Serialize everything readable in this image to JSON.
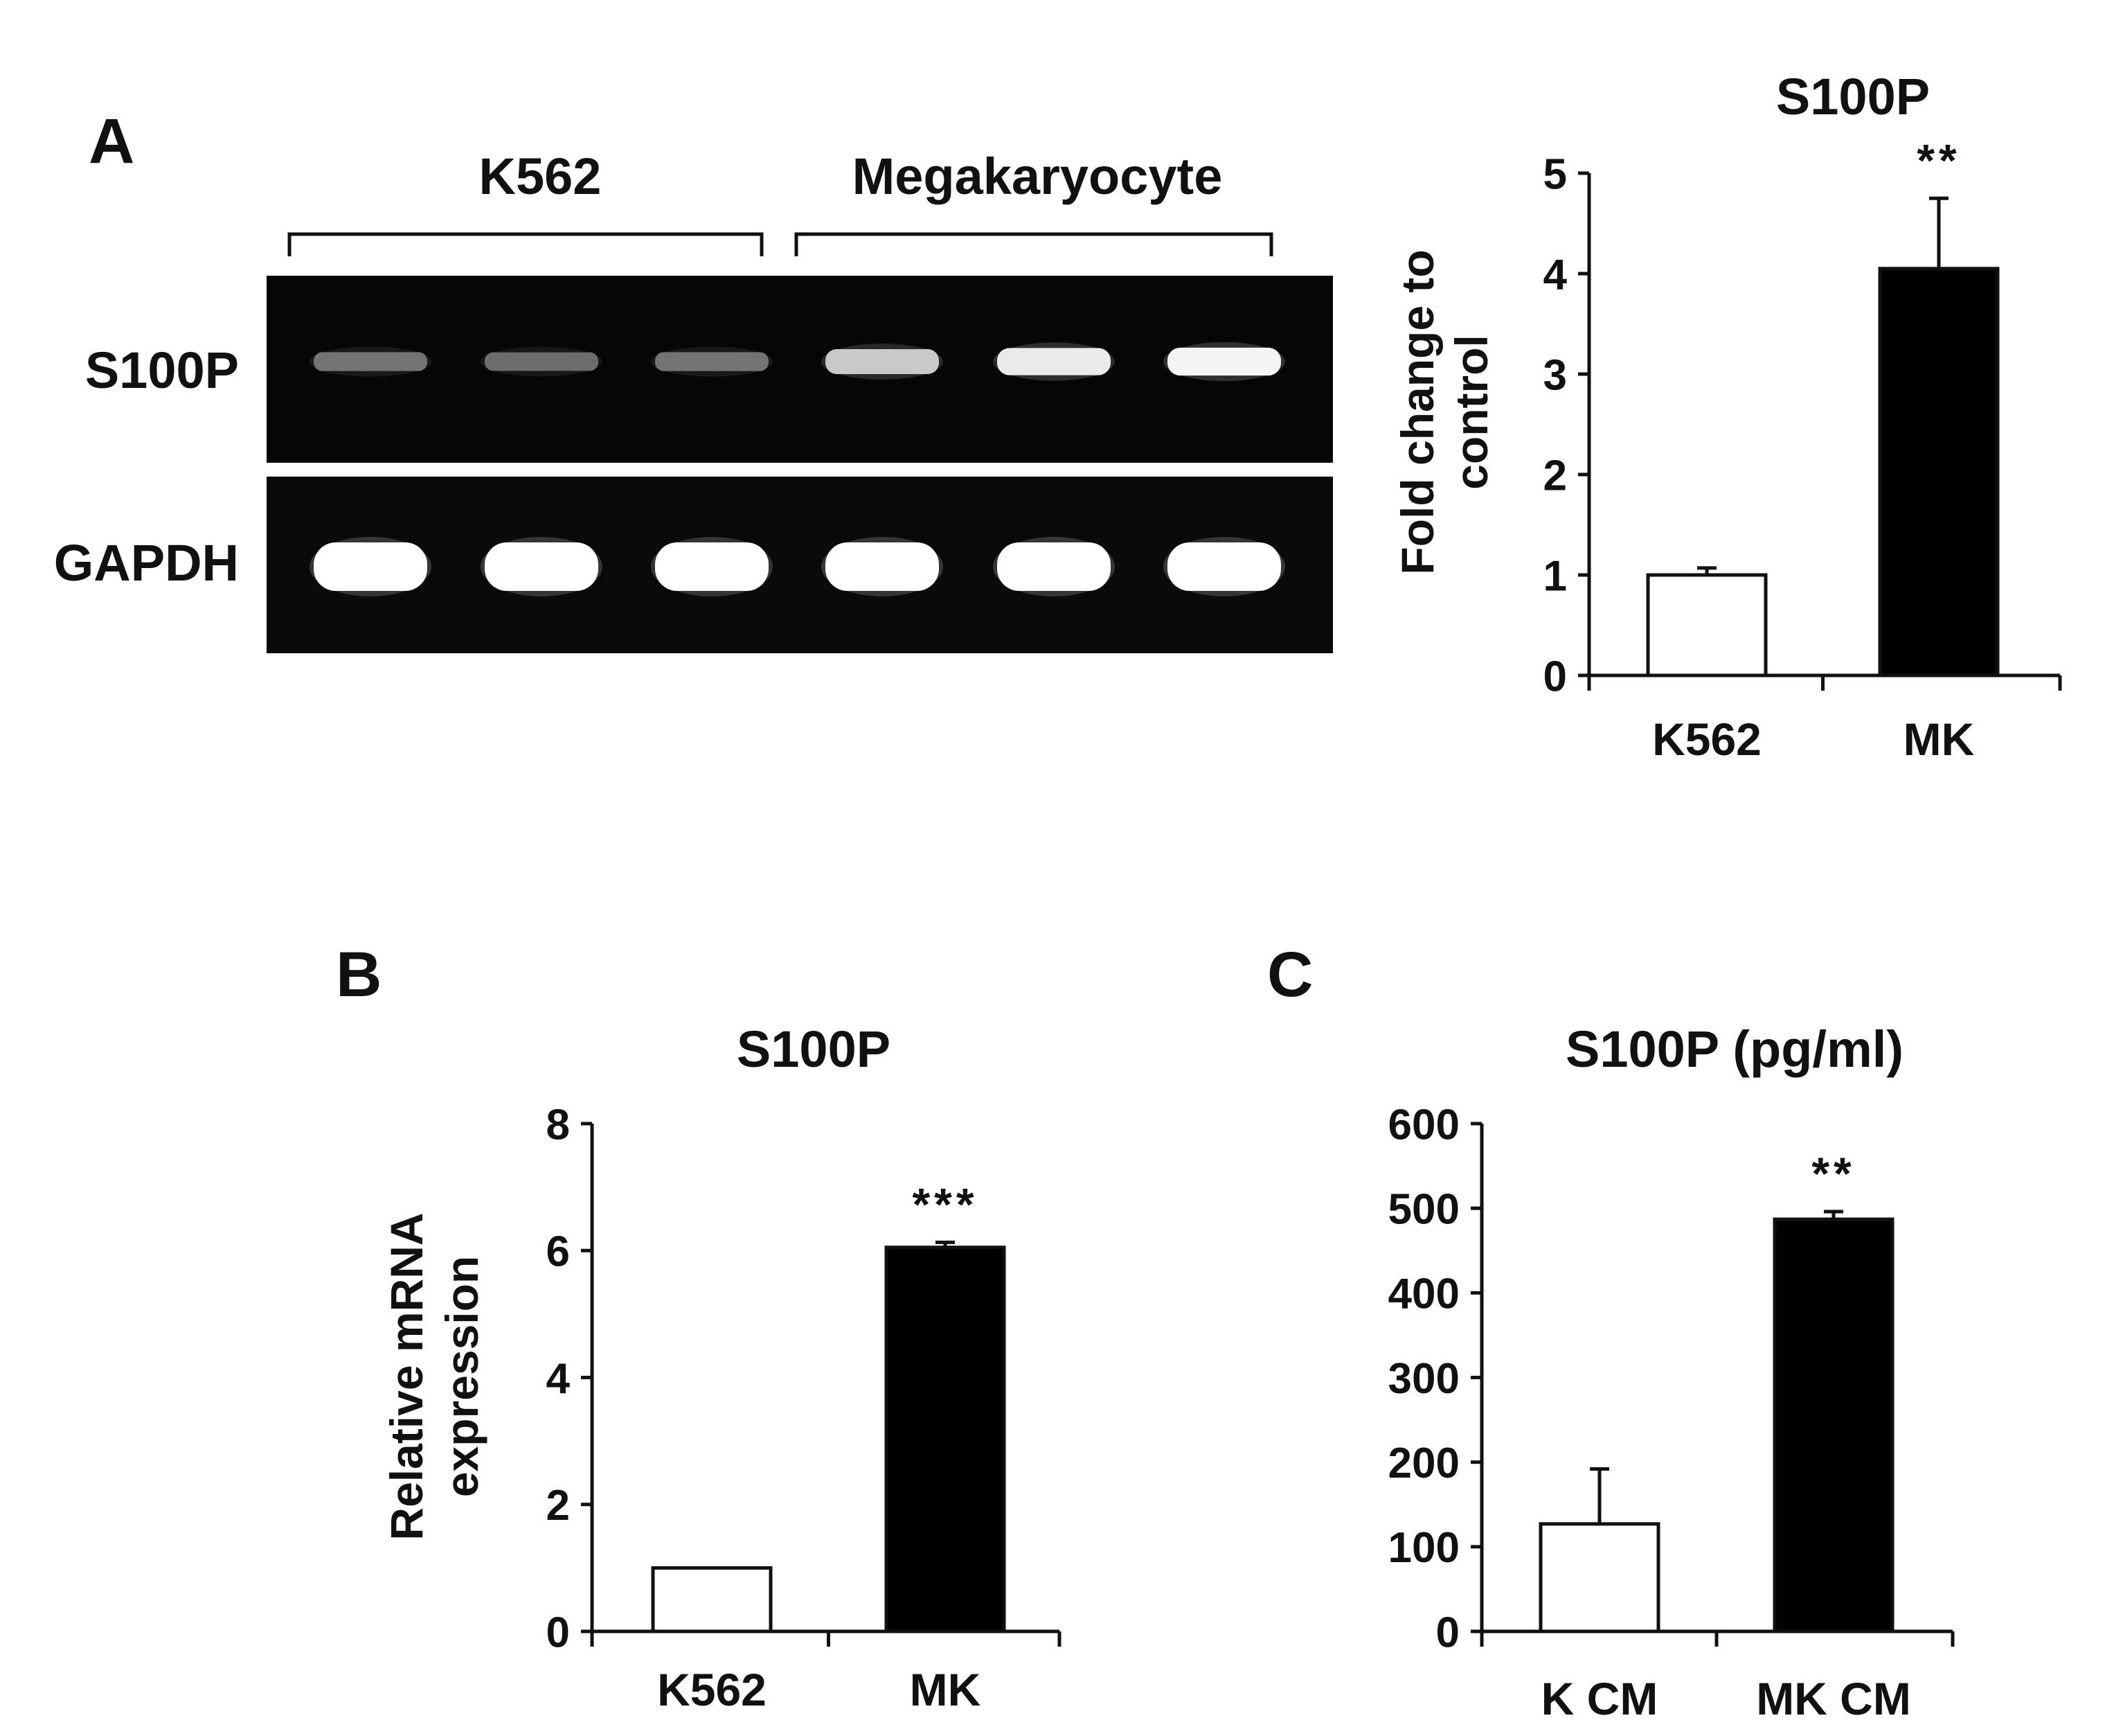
{
  "panel_labels": {
    "a": "A",
    "b": "B",
    "c": "C"
  },
  "gel": {
    "group_labels": [
      "K562",
      "Megakaryocyte"
    ],
    "row_labels": [
      "S100P",
      "GAPDH"
    ],
    "lanes": 6,
    "band_intensity": {
      "S100P": [
        0.35,
        0.32,
        0.35,
        0.75,
        0.9,
        0.95
      ],
      "GAPDH": [
        1,
        1,
        1,
        1,
        1,
        1
      ]
    }
  },
  "chart_data": [
    {
      "type": "bar",
      "title": "S100P",
      "xlabel": "",
      "ylabel": "Fold change to control",
      "ylabel_lines": [
        "Fold change to",
        "control"
      ],
      "categories": [
        "K562",
        "MK"
      ],
      "values": [
        1.0,
        4.05
      ],
      "errors": [
        0.07,
        0.7
      ],
      "bar_colors": [
        "#ffffff",
        "#000000"
      ],
      "significance": [
        "",
        "**"
      ],
      "ylim": [
        0,
        5
      ],
      "yticks": [
        0,
        1,
        2,
        3,
        4,
        5
      ],
      "ytick_labels": [
        "0",
        "1",
        "2",
        "3",
        "4",
        "5"
      ]
    },
    {
      "type": "bar",
      "title": "S100P",
      "xlabel": "",
      "ylabel": "Relative mRNA expression",
      "ylabel_lines": [
        "Relative mRNA",
        "expression"
      ],
      "categories": [
        "K562",
        "MK"
      ],
      "values": [
        1.0,
        6.05
      ],
      "errors": [
        0,
        0.08
      ],
      "bar_colors": [
        "#ffffff",
        "#000000"
      ],
      "significance": [
        "",
        "***"
      ],
      "ylim": [
        0,
        8
      ],
      "yticks": [
        0,
        2,
        4,
        6,
        8
      ],
      "ytick_labels": [
        "0",
        "2",
        "4",
        "6",
        "8"
      ]
    },
    {
      "type": "bar",
      "title": "S100P (pg/ml)",
      "xlabel": "",
      "ylabel": "",
      "ylabel_lines": [],
      "categories": [
        "K CM",
        "MK CM"
      ],
      "values": [
        127,
        487
      ],
      "errors": [
        65,
        9
      ],
      "bar_colors": [
        "#ffffff",
        "#000000"
      ],
      "significance": [
        "",
        "**"
      ],
      "ylim": [
        0,
        600
      ],
      "yticks": [
        0,
        100,
        200,
        300,
        400,
        500,
        600
      ],
      "ytick_labels": [
        "0",
        "100",
        "200",
        "300",
        "400",
        "500",
        "600"
      ]
    }
  ]
}
